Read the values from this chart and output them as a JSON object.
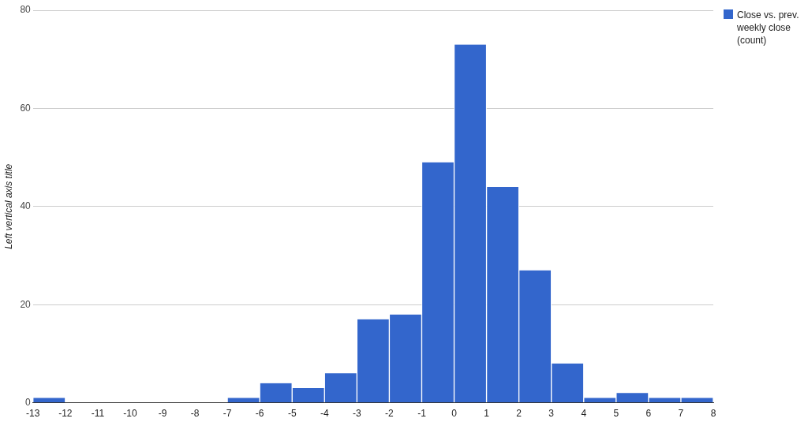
{
  "chart_data": {
    "type": "histogram",
    "ylabel": "Left vertical axis title",
    "bins": [
      -13,
      -12,
      -11,
      -10,
      -9,
      -8,
      -7,
      -6,
      -5,
      -4,
      -3,
      -2,
      -1,
      0,
      1,
      2,
      3,
      4,
      5,
      6,
      7,
      8
    ],
    "series": [
      {
        "name": "Close vs. prev. weekly close (count)",
        "color": "#3366cc",
        "values": [
          1,
          0,
          0,
          0,
          0,
          0,
          1,
          4,
          3,
          6,
          17,
          18,
          49,
          73,
          44,
          27,
          8,
          1,
          2,
          1,
          1
        ]
      }
    ],
    "xlim": [
      -13,
      8
    ],
    "xticks": [
      -13,
      -12,
      -11,
      -10,
      -9,
      -8,
      -7,
      -6,
      -5,
      -4,
      -3,
      -2,
      -1,
      0,
      1,
      2,
      3,
      4,
      5,
      6,
      7,
      8
    ],
    "ylim": [
      0,
      80
    ],
    "yticks": [
      0,
      20,
      40,
      60,
      80
    ],
    "grid": "y",
    "legend": "top right"
  }
}
